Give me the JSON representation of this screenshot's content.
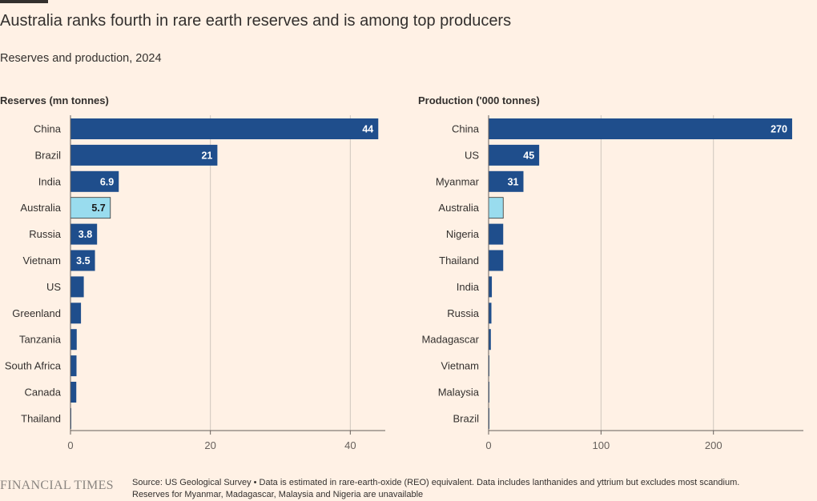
{
  "title": "Australia ranks fourth in rare earth reserves and is among top producers",
  "subtitle": "Reserves and production, 2024",
  "logo": "FINANCIAL TIMES",
  "source": {
    "line1": "Source: US Geological Survey • Data is estimated in rare-earth-oxide (REO) equivalent. Data includes lanthanides and yttrium but excludes most scandium.",
    "line2": "Reserves for Myanmar, Madagascar, Malaysia and Nigeria are unavailable"
  },
  "colors": {
    "bar": "#1f4e8c",
    "highlight": "#99dcee",
    "background": "#fff1e5",
    "grid": "#cfc6bd",
    "axis": "#66605c",
    "text": "#33302e"
  },
  "chart_data": [
    {
      "type": "bar",
      "orientation": "horizontal",
      "title": "Reserves (mn tonnes)",
      "categories": [
        "China",
        "Brazil",
        "India",
        "Australia",
        "Russia",
        "Vietnam",
        "US",
        "Greenland",
        "Tanzania",
        "South Africa",
        "Canada",
        "Thailand"
      ],
      "values": [
        44,
        21,
        6.9,
        5.7,
        3.8,
        3.5,
        1.9,
        1.5,
        0.89,
        0.86,
        0.83,
        0.0045
      ],
      "data_labels": [
        "44",
        "21",
        "6.9",
        "5.7",
        "3.8",
        "3.5",
        "",
        "",
        "",
        "",
        "",
        ""
      ],
      "highlight": "Australia",
      "xlim": [
        0,
        45
      ],
      "xticks": [
        0,
        20,
        40
      ],
      "grid": true
    },
    {
      "type": "bar",
      "orientation": "horizontal",
      "title": "Production ('000 tonnes)",
      "categories": [
        "China",
        "US",
        "Myanmar",
        "Australia",
        "Nigeria",
        "Thailand",
        "India",
        "Russia",
        "Madagascar",
        "Vietnam",
        "Malaysia",
        "Brazil"
      ],
      "values": [
        270,
        45,
        31,
        13,
        13,
        13,
        2.9,
        2.5,
        2,
        0.3,
        0.13,
        0.02
      ],
      "data_labels": [
        "270",
        "45",
        "31",
        "",
        "",
        "",
        "",
        "",
        "",
        "",
        "",
        ""
      ],
      "highlight": "Australia",
      "xlim": [
        0,
        280
      ],
      "xticks": [
        0,
        100,
        200
      ],
      "grid": true
    }
  ]
}
